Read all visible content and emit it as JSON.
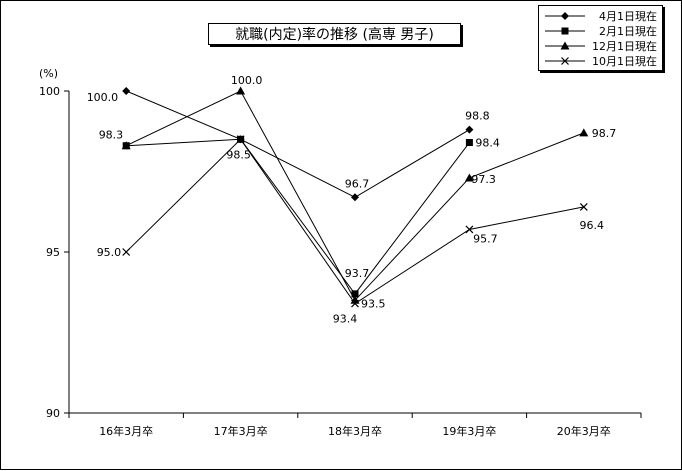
{
  "chart_data": {
    "type": "line",
    "title": "就職(内定)率の推移 (高専 男子)",
    "ylabel": "(%)",
    "ylim": [
      90,
      100
    ],
    "yticks": [
      90,
      95,
      100
    ],
    "categories": [
      "16年3月卒",
      "17年3月卒",
      "18年3月卒",
      "19年3月卒",
      "20年3月卒"
    ],
    "grid": false,
    "legend_position": "top-right",
    "series": [
      {
        "name": "4月1日現在",
        "marker": "diamond",
        "values": [
          100.0,
          98.5,
          96.7,
          98.8,
          null
        ]
      },
      {
        "name": "2月1日現在",
        "marker": "square",
        "values": [
          98.3,
          98.5,
          93.7,
          98.4,
          null
        ]
      },
      {
        "name": "12月1日現在",
        "marker": "triangle",
        "values": [
          98.3,
          100.0,
          93.5,
          97.3,
          98.7
        ]
      },
      {
        "name": "10月1日現在",
        "marker": "cross",
        "values": [
          95.0,
          98.5,
          93.4,
          95.7,
          96.4
        ]
      }
    ],
    "data_labels": [
      {
        "series": 0,
        "index": 0,
        "text": "100.0"
      },
      {
        "series": 1,
        "index": 0,
        "text": "98.3"
      },
      {
        "series": 3,
        "index": 0,
        "text": "95.0"
      },
      {
        "series": 2,
        "index": 1,
        "text": "100.0"
      },
      {
        "series": 1,
        "index": 1,
        "text": "98.5"
      },
      {
        "series": 0,
        "index": 2,
        "text": "96.7"
      },
      {
        "series": 1,
        "index": 2,
        "text": "93.7"
      },
      {
        "series": 3,
        "index": 2,
        "text": "93.4"
      },
      {
        "series": 2,
        "index": 2,
        "text": "93.5"
      },
      {
        "series": 0,
        "index": 3,
        "text": "98.8"
      },
      {
        "series": 1,
        "index": 3,
        "text": "98.4"
      },
      {
        "series": 2,
        "index": 3,
        "text": "97.3"
      },
      {
        "series": 3,
        "index": 3,
        "text": "95.7"
      },
      {
        "series": 2,
        "index": 4,
        "text": "98.7"
      },
      {
        "series": 3,
        "index": 4,
        "text": "96.4"
      }
    ]
  }
}
